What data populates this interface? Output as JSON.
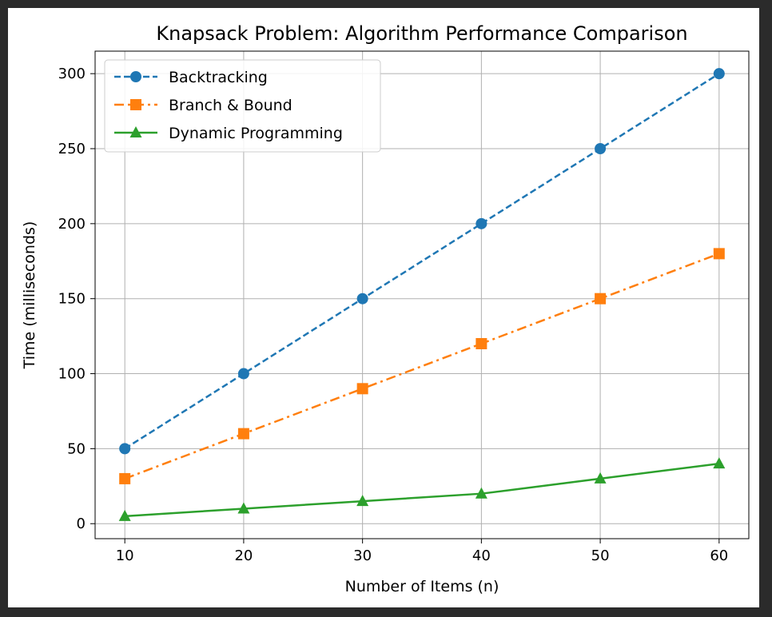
{
  "chart_data": {
    "type": "line",
    "title": "Knapsack Problem: Algorithm Performance Comparison",
    "xlabel": "Number of Items (n)",
    "ylabel": "Time (milliseconds)",
    "x": [
      10,
      20,
      30,
      40,
      50,
      60
    ],
    "xticks": [
      "10",
      "20",
      "30",
      "40",
      "50",
      "60"
    ],
    "yticks": [
      "0",
      "50",
      "100",
      "150",
      "200",
      "250",
      "300"
    ],
    "ylim": [
      -10,
      315
    ],
    "xlim": [
      7.5,
      62.5
    ],
    "grid": true,
    "legend_position": "top-left",
    "series": [
      {
        "name": "Backtracking",
        "values": [
          50,
          100,
          150,
          200,
          250,
          300
        ],
        "color": "#1f77b4",
        "linestyle": "dashed",
        "marker": "circle"
      },
      {
        "name": "Branch & Bound",
        "values": [
          30,
          60,
          90,
          120,
          150,
          180
        ],
        "color": "#ff7f0e",
        "linestyle": "dashdot",
        "marker": "square"
      },
      {
        "name": "Dynamic Programming",
        "values": [
          5,
          10,
          15,
          20,
          30,
          40
        ],
        "color": "#2ca02c",
        "linestyle": "solid",
        "marker": "triangle"
      }
    ]
  }
}
